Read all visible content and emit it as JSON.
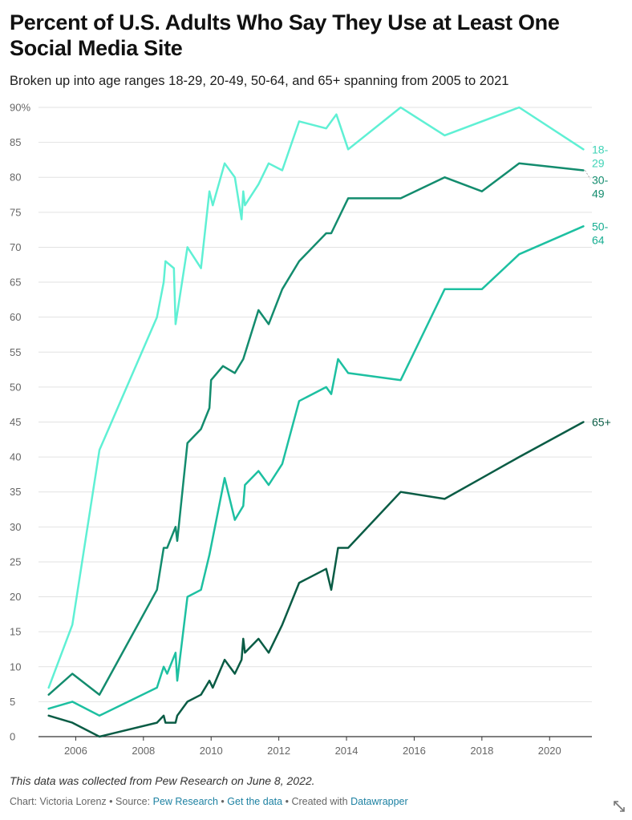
{
  "title": "Percent of U.S. Adults Who Say They Use at Least One Social Media Site",
  "subtitle": "Broken up into age ranges 18-29, 20-49, 50-64, and 65+ spanning from 2005 to 2021",
  "notes": "This data was collected from Pew Research on June 8, 2022.",
  "footer": {
    "chart_by": "Chart: Victoria Lorenz",
    "source_label": "Source:",
    "source_link": "Pew Research",
    "get_data": "Get the data",
    "created_with_label": "Created with",
    "created_with_link": "Datawrapper",
    "sep": "•"
  },
  "icons": {
    "expand": "expand-icon"
  },
  "chart_data": {
    "type": "line",
    "title": "Percent of U.S. Adults Who Say They Use at Least One Social Media Site",
    "subtitle": "Broken up into age ranges 18-29, 20-49, 50-64, and 65+ spanning from 2005 to 2021",
    "xlabel": "",
    "ylabel": "",
    "xlim": [
      2004.9,
      2021.25
    ],
    "ylim": [
      0,
      90
    ],
    "x_ticks": [
      2006,
      2008,
      2010,
      2012,
      2014,
      2016,
      2018,
      2020
    ],
    "x_tick_labels": [
      "2006",
      "2008",
      "2010",
      "2012",
      "2014",
      "2016",
      "2018",
      "2020"
    ],
    "y_ticks": [
      0,
      5,
      10,
      15,
      20,
      25,
      30,
      35,
      40,
      45,
      50,
      55,
      60,
      65,
      70,
      75,
      80,
      85,
      90
    ],
    "y_tick_labels": [
      "0",
      "5",
      "10",
      "15",
      "20",
      "25",
      "30",
      "35",
      "40",
      "45",
      "50",
      "55",
      "60",
      "65",
      "70",
      "75",
      "80",
      "85",
      "90%"
    ],
    "grid": "horizontal",
    "legend": "direct labels at line ends",
    "series": [
      {
        "name": "18-29",
        "label_lines": [
          "18-",
          "29"
        ],
        "color": "#5ff0d4",
        "label_color": "#3fd3b6",
        "x": [
          2005.2,
          2005.9,
          2006.7,
          2008.4,
          2008.6,
          2008.65,
          2008.9,
          2008.95,
          2009.3,
          2009.7,
          2009.95,
          2010.05,
          2010.4,
          2010.7,
          2010.9,
          2010.95,
          2011.0,
          2011.4,
          2011.7,
          2012.1,
          2012.6,
          2013.4,
          2013.7,
          2014.05,
          2015.6,
          2016.9,
          2019.1,
          2021.0
        ],
        "y": [
          7,
          16,
          41,
          60,
          65,
          68,
          67,
          59,
          70,
          67,
          78,
          76,
          82,
          80,
          74,
          78,
          76,
          79,
          82,
          81,
          88,
          87,
          89,
          84,
          90,
          86,
          90,
          84
        ]
      },
      {
        "name": "30-49",
        "label_lines": [
          "30-",
          "49"
        ],
        "color": "#138c6e",
        "label_color": "#138c6e",
        "x": [
          2005.2,
          2005.9,
          2006.7,
          2008.4,
          2008.6,
          2008.7,
          2008.95,
          2009.0,
          2009.3,
          2009.7,
          2009.95,
          2010.0,
          2010.35,
          2010.7,
          2010.95,
          2011.4,
          2011.7,
          2012.1,
          2012.6,
          2013.4,
          2013.55,
          2014.05,
          2015.6,
          2016.9,
          2018.0,
          2019.1,
          2021.0
        ],
        "y": [
          6,
          9,
          6,
          21,
          27,
          27,
          30,
          28,
          42,
          44,
          47,
          51,
          53,
          52,
          54,
          61,
          59,
          64,
          68,
          72,
          72,
          77,
          77,
          80,
          78,
          82,
          81
        ]
      },
      {
        "name": "50-64",
        "label_lines": [
          "50-",
          "64"
        ],
        "color": "#1dc0a1",
        "label_color": "#17ae92",
        "x": [
          2005.2,
          2005.9,
          2006.7,
          2008.4,
          2008.6,
          2008.7,
          2008.95,
          2009.0,
          2009.3,
          2009.7,
          2009.95,
          2010.4,
          2010.7,
          2010.95,
          2011.0,
          2011.4,
          2011.7,
          2012.1,
          2012.6,
          2013.4,
          2013.55,
          2013.75,
          2014.05,
          2015.6,
          2016.9,
          2018.0,
          2019.1,
          2021.0
        ],
        "y": [
          4,
          5,
          3,
          7,
          10,
          9,
          12,
          8,
          20,
          21,
          26,
          37,
          31,
          33,
          36,
          38,
          36,
          39,
          48,
          50,
          49,
          54,
          52,
          51,
          64,
          64,
          69,
          73
        ]
      },
      {
        "name": "65+",
        "label_lines": [
          "65+"
        ],
        "color": "#0a5c45",
        "label_color": "#0a5c45",
        "x": [
          2005.2,
          2005.9,
          2006.7,
          2008.4,
          2008.6,
          2008.65,
          2008.95,
          2009.0,
          2009.3,
          2009.7,
          2009.95,
          2010.05,
          2010.4,
          2010.7,
          2010.9,
          2010.95,
          2011.0,
          2011.4,
          2011.7,
          2012.1,
          2012.6,
          2013.4,
          2013.55,
          2013.75,
          2014.05,
          2015.6,
          2016.9,
          2018.0,
          2019.1,
          2021.0
        ],
        "y": [
          3,
          2,
          0,
          2,
          3,
          2,
          2,
          3,
          5,
          6,
          8,
          7,
          11,
          9,
          11,
          14,
          12,
          14,
          12,
          16,
          22,
          24,
          21,
          27,
          27,
          35,
          34,
          37,
          40,
          45
        ]
      }
    ]
  }
}
